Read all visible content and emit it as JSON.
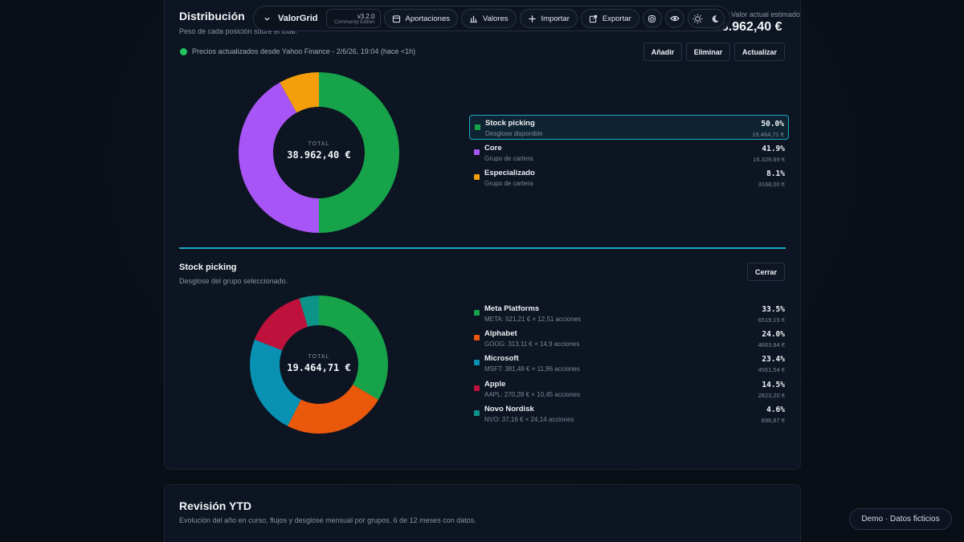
{
  "toolbar": {
    "brand": "ValorGrid",
    "version": "v3.2.0",
    "edition": "Community Edition",
    "buttons": [
      {
        "label": "Aportaciones",
        "icon": "calendar-icon"
      },
      {
        "label": "Valores",
        "icon": "bar-chart-icon"
      },
      {
        "label": "Importar",
        "icon": "plus-icon"
      },
      {
        "label": "Exportar",
        "icon": "external-link-icon"
      }
    ]
  },
  "distribution": {
    "title": "Distribución",
    "subtitle": "Peso de cada posición sobre el total.",
    "value_label": "Valor actual estimado",
    "value": "38.962,40 €",
    "status": "Precios actualizados desde Yahoo Finance - 2/6/26, 19:04 (hace <1h)",
    "actions": {
      "add": "Añadir",
      "remove": "Eliminar",
      "update": "Actualizar"
    },
    "center_label": "TOTAL",
    "center_value": "38.962,40 €",
    "items": [
      {
        "name": "Stock picking",
        "desc": "Desglose disponible",
        "pct": "50.0%",
        "amount": "19.464,71 €",
        "color": "#16a34a",
        "share": 50.0,
        "selected": true
      },
      {
        "name": "Core",
        "desc": "Grupo de cartera",
        "pct": "41.9%",
        "amount": "16.329,69 €",
        "color": "#a855f7",
        "share": 41.9,
        "selected": false
      },
      {
        "name": "Especializado",
        "desc": "Grupo de cartera",
        "pct": "8.1%",
        "amount": "3168,00 €",
        "color": "#f59e0b",
        "share": 8.1,
        "selected": false
      }
    ]
  },
  "breakdown": {
    "title": "Stock picking",
    "subtitle": "Desglose del grupo seleccionado.",
    "close": "Cerrar",
    "center_label": "TOTAL",
    "center_value": "19.464,71 €",
    "items": [
      {
        "name": "Meta Platforms",
        "desc": "META: 521,21 € × 12,51 acciones",
        "pct": "33.5%",
        "amount": "6519,15 €",
        "color": "#16a34a",
        "share": 33.5
      },
      {
        "name": "Alphabet",
        "desc": "GOOG: 313,11 € × 14,9 acciones",
        "pct": "24.0%",
        "amount": "4663,94 €",
        "color": "#ea580c",
        "share": 24.0
      },
      {
        "name": "Microsoft",
        "desc": "MSFT: 381,48 € × 11,96 acciones",
        "pct": "23.4%",
        "amount": "4561,54 €",
        "color": "#0891b2",
        "share": 23.4
      },
      {
        "name": "Apple",
        "desc": "AAPL: 270,28 € × 10,45 acciones",
        "pct": "14.5%",
        "amount": "2823,20 €",
        "color": "#be123c",
        "share": 14.5
      },
      {
        "name": "Novo Nordisk",
        "desc": "NVO: 37,16 € × 24,14 acciones",
        "pct": "4.6%",
        "amount": "896,87 €",
        "color": "#0d9488",
        "share": 4.6
      }
    ]
  },
  "ytd": {
    "title": "Revisión YTD",
    "subtitle": "Evolución del año en curso, flujos y desglose mensual por grupos. 6 de 12 meses con datos."
  },
  "demo_badge": "Demo · Datos ficticios"
}
